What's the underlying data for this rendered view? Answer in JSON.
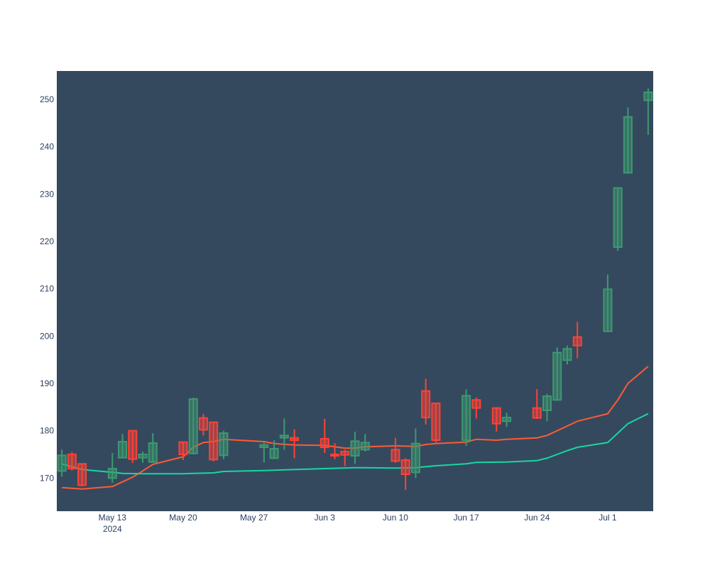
{
  "chart_data": {
    "type": "candlestick",
    "title": "",
    "xlabel": "",
    "ylabel": "",
    "ylim": [
      163,
      256
    ],
    "grid": false,
    "legend": "none",
    "colors": {
      "plot_bg": "#34495e",
      "increasing": "#3d9970",
      "decreasing": "#ff4136",
      "ma_fast": "#ff5a36",
      "ma_slow": "#17d6a4",
      "tick_text": "#2a3f5f"
    },
    "x_ticks": [
      {
        "date": "2024-05-13",
        "label": "May 13",
        "sublabel": "2024"
      },
      {
        "date": "2024-05-20",
        "label": "May 20"
      },
      {
        "date": "2024-05-27",
        "label": "May 27"
      },
      {
        "date": "2024-06-03",
        "label": "Jun 3"
      },
      {
        "date": "2024-06-10",
        "label": "Jun 10"
      },
      {
        "date": "2024-06-17",
        "label": "Jun 17"
      },
      {
        "date": "2024-06-24",
        "label": "Jun 24"
      },
      {
        "date": "2024-07-01",
        "label": "Jul 1"
      }
    ],
    "y_ticks": [
      170,
      180,
      190,
      200,
      210,
      220,
      230,
      240,
      250
    ],
    "candles": [
      {
        "date": "2024-05-08",
        "open": 171.5,
        "high": 176.0,
        "low": 170.3,
        "close": 174.8
      },
      {
        "date": "2024-05-09",
        "open": 175.0,
        "high": 175.5,
        "low": 171.6,
        "close": 172.0
      },
      {
        "date": "2024-05-10",
        "open": 173.0,
        "high": 173.0,
        "low": 168.2,
        "close": 168.5
      },
      {
        "date": "2024-05-13",
        "open": 170.0,
        "high": 175.3,
        "low": 169.0,
        "close": 172.0
      },
      {
        "date": "2024-05-14",
        "open": 174.3,
        "high": 179.3,
        "low": 174.3,
        "close": 177.7
      },
      {
        "date": "2024-05-15",
        "open": 180.0,
        "high": 180.0,
        "low": 173.2,
        "close": 174.0
      },
      {
        "date": "2024-05-16",
        "open": 174.3,
        "high": 175.6,
        "low": 173.2,
        "close": 175.0
      },
      {
        "date": "2024-05-17",
        "open": 173.4,
        "high": 179.5,
        "low": 173.2,
        "close": 177.4
      },
      {
        "date": "2024-05-20",
        "open": 177.6,
        "high": 177.6,
        "low": 173.8,
        "close": 175.0
      },
      {
        "date": "2024-05-21",
        "open": 175.2,
        "high": 187.0,
        "low": 175.0,
        "close": 186.7
      },
      {
        "date": "2024-05-22",
        "open": 182.7,
        "high": 183.5,
        "low": 179.0,
        "close": 180.2
      },
      {
        "date": "2024-05-23",
        "open": 181.8,
        "high": 181.8,
        "low": 173.5,
        "close": 173.9
      },
      {
        "date": "2024-05-24",
        "open": 174.8,
        "high": 180.0,
        "low": 174.0,
        "close": 179.5
      },
      {
        "date": "2024-05-28",
        "open": 176.5,
        "high": 177.5,
        "low": 173.3,
        "close": 177.0
      },
      {
        "date": "2024-05-29",
        "open": 174.2,
        "high": 178.0,
        "low": 174.0,
        "close": 176.2
      },
      {
        "date": "2024-05-30",
        "open": 178.5,
        "high": 182.6,
        "low": 176.0,
        "close": 179.0
      },
      {
        "date": "2024-05-31",
        "open": 178.5,
        "high": 180.3,
        "low": 174.2,
        "close": 178.0
      },
      {
        "date": "2024-06-03",
        "open": 178.3,
        "high": 182.5,
        "low": 175.3,
        "close": 176.5
      },
      {
        "date": "2024-06-04",
        "open": 175.0,
        "high": 177.4,
        "low": 174.0,
        "close": 174.7
      },
      {
        "date": "2024-06-05",
        "open": 175.6,
        "high": 176.0,
        "low": 172.5,
        "close": 174.9
      },
      {
        "date": "2024-06-06",
        "open": 174.7,
        "high": 179.8,
        "low": 173.0,
        "close": 177.8
      },
      {
        "date": "2024-06-07",
        "open": 176.0,
        "high": 179.3,
        "low": 175.6,
        "close": 177.5
      },
      {
        "date": "2024-06-10",
        "open": 176.0,
        "high": 178.5,
        "low": 173.2,
        "close": 173.6
      },
      {
        "date": "2024-06-11",
        "open": 173.8,
        "high": 174.2,
        "low": 167.5,
        "close": 170.8
      },
      {
        "date": "2024-06-12",
        "open": 171.2,
        "high": 180.5,
        "low": 170.0,
        "close": 177.3
      },
      {
        "date": "2024-06-13",
        "open": 188.4,
        "high": 191.0,
        "low": 181.3,
        "close": 182.8
      },
      {
        "date": "2024-06-14",
        "open": 185.8,
        "high": 185.8,
        "low": 177.2,
        "close": 178.0
      },
      {
        "date": "2024-06-17",
        "open": 178.0,
        "high": 188.7,
        "low": 176.8,
        "close": 187.4
      },
      {
        "date": "2024-06-18",
        "open": 186.5,
        "high": 187.0,
        "low": 182.6,
        "close": 184.8
      },
      {
        "date": "2024-06-20",
        "open": 184.8,
        "high": 185.0,
        "low": 179.8,
        "close": 181.5
      },
      {
        "date": "2024-06-21",
        "open": 182.0,
        "high": 183.8,
        "low": 180.8,
        "close": 182.8
      },
      {
        "date": "2024-06-24",
        "open": 184.8,
        "high": 188.8,
        "low": 182.5,
        "close": 182.7
      },
      {
        "date": "2024-06-25",
        "open": 184.3,
        "high": 187.8,
        "low": 182.0,
        "close": 187.3
      },
      {
        "date": "2024-06-26",
        "open": 186.5,
        "high": 197.6,
        "low": 186.5,
        "close": 196.5
      },
      {
        "date": "2024-06-27",
        "open": 194.9,
        "high": 198.0,
        "low": 194.0,
        "close": 197.3
      },
      {
        "date": "2024-06-28",
        "open": 199.8,
        "high": 203.0,
        "low": 195.3,
        "close": 198.0
      },
      {
        "date": "2024-07-01",
        "open": 201.0,
        "high": 213.0,
        "low": 201.0,
        "close": 209.9
      },
      {
        "date": "2024-07-02",
        "open": 218.8,
        "high": 231.3,
        "low": 218.0,
        "close": 231.3
      },
      {
        "date": "2024-07-03",
        "open": 234.5,
        "high": 248.3,
        "low": 234.3,
        "close": 246.3
      },
      {
        "date": "2024-07-05",
        "open": 249.8,
        "high": 252.3,
        "low": 242.5,
        "close": 251.5
      }
    ],
    "series": [
      {
        "color": "#ff5a36",
        "points": [
          [
            "2024-05-08",
            168.0
          ],
          [
            "2024-05-10",
            167.7
          ],
          [
            "2024-05-13",
            168.2
          ],
          [
            "2024-05-14",
            169.2
          ],
          [
            "2024-05-15",
            170.2
          ],
          [
            "2024-05-16",
            171.5
          ],
          [
            "2024-05-17",
            172.9
          ],
          [
            "2024-05-20",
            174.5
          ],
          [
            "2024-05-21",
            176.5
          ],
          [
            "2024-05-22",
            177.5
          ],
          [
            "2024-05-23",
            177.7
          ],
          [
            "2024-05-24",
            178.2
          ],
          [
            "2024-05-28",
            177.7
          ],
          [
            "2024-05-29",
            177.3
          ],
          [
            "2024-05-31",
            177.0
          ],
          [
            "2024-06-03",
            176.9
          ],
          [
            "2024-06-04",
            176.6
          ],
          [
            "2024-06-05",
            176.3
          ],
          [
            "2024-06-06",
            176.3
          ],
          [
            "2024-06-07",
            176.6
          ],
          [
            "2024-06-10",
            176.8
          ],
          [
            "2024-06-12",
            176.7
          ],
          [
            "2024-06-13",
            177.1
          ],
          [
            "2024-06-14",
            177.3
          ],
          [
            "2024-06-17",
            177.6
          ],
          [
            "2024-06-18",
            178.2
          ],
          [
            "2024-06-20",
            178.0
          ],
          [
            "2024-06-21",
            178.2
          ],
          [
            "2024-06-24",
            178.5
          ],
          [
            "2024-06-25",
            179.0
          ],
          [
            "2024-06-26",
            180.0
          ],
          [
            "2024-06-27",
            181.0
          ],
          [
            "2024-06-28",
            182.0
          ],
          [
            "2024-07-01",
            183.6
          ],
          [
            "2024-07-02",
            186.5
          ],
          [
            "2024-07-03",
            190.0
          ],
          [
            "2024-07-05",
            193.6
          ]
        ]
      },
      {
        "color": "#17d6a4",
        "points": [
          [
            "2024-05-08",
            173.0
          ],
          [
            "2024-05-10",
            171.8
          ],
          [
            "2024-05-13",
            171.2
          ],
          [
            "2024-05-14",
            171.0
          ],
          [
            "2024-05-16",
            170.9
          ],
          [
            "2024-05-20",
            170.9
          ],
          [
            "2024-05-21",
            171.0
          ],
          [
            "2024-05-23",
            171.1
          ],
          [
            "2024-05-24",
            171.4
          ],
          [
            "2024-05-28",
            171.6
          ],
          [
            "2024-06-03",
            172.0
          ],
          [
            "2024-06-06",
            172.2
          ],
          [
            "2024-06-10",
            172.1
          ],
          [
            "2024-06-12",
            172.2
          ],
          [
            "2024-06-13",
            172.4
          ],
          [
            "2024-06-14",
            172.6
          ],
          [
            "2024-06-17",
            173.0
          ],
          [
            "2024-06-18",
            173.3
          ],
          [
            "2024-06-21",
            173.4
          ],
          [
            "2024-06-24",
            173.7
          ],
          [
            "2024-06-25",
            174.2
          ],
          [
            "2024-06-26",
            175.0
          ],
          [
            "2024-06-27",
            175.8
          ],
          [
            "2024-06-28",
            176.5
          ],
          [
            "2024-07-01",
            177.5
          ],
          [
            "2024-07-02",
            179.5
          ],
          [
            "2024-07-03",
            181.5
          ],
          [
            "2024-07-05",
            183.6
          ]
        ]
      }
    ]
  }
}
